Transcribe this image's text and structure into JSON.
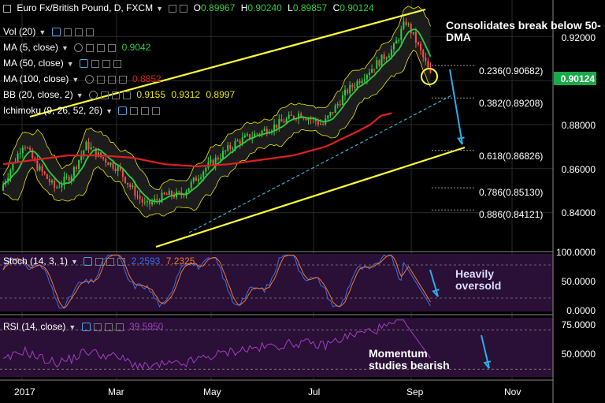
{
  "header": {
    "symbol": "Euro Fx/British Pound, D, FXCM",
    "open_label": "O",
    "open": "0.89967",
    "high_label": "H",
    "high": "0.90240",
    "low_label": "L",
    "low": "0.89857",
    "close_label": "C",
    "close": "0.90124"
  },
  "indicators": [
    {
      "label": "Vol (20)",
      "values": []
    },
    {
      "label": "MA (5, close)",
      "values": [
        "0.9042"
      ]
    },
    {
      "label": "MA (50, close)",
      "values": []
    },
    {
      "label": "MA (100, close)",
      "values": [
        "0.8852"
      ]
    },
    {
      "label": "BB (20, close, 2)",
      "values": [
        "0.9155",
        "0.9312",
        "0.8997"
      ]
    },
    {
      "label": "Ichimoku (9, 26, 52, 26)",
      "values": []
    }
  ],
  "colors": {
    "ma5": "#2ecc40",
    "ma100": "#e02020",
    "bb": "#e6e600",
    "channel": "#ffff33",
    "arrow": "#2ab0e8",
    "stoch_k": "#3a6ee8",
    "stoch_d": "#f07a2a",
    "rsi": "#a040c0",
    "panel_bg": "#2a0f36",
    "price_tag": "#1aa84a",
    "bull": "#2ecc40",
    "bear": "#ff4a4a"
  },
  "price_tag": "0.90124",
  "annotations": {
    "main": "Consolidates break below 50-DMA",
    "stoch": "Heavily oversold",
    "rsi": "Momentum studies bearish"
  },
  "fibonacci": [
    {
      "label": "0.236(0.90682)",
      "value": 0.90682
    },
    {
      "label": "0.382(0.89208)",
      "value": 0.89208
    },
    {
      "label": "0.618(0.86826)",
      "value": 0.86826
    },
    {
      "label": "0.786(0.85130)",
      "value": 0.8513
    },
    {
      "label": "0.886(0.84121)",
      "value": 0.84121
    }
  ],
  "stoch": {
    "label": "Stoch (14, 3, 1)",
    "k": "2.2593",
    "d": "7.2325"
  },
  "rsi": {
    "label": "RSI (14, close)",
    "value": "39.5950"
  },
  "axes": {
    "price_ticks": [
      "0.92000",
      "0.90000",
      "0.88000",
      "0.86000",
      "0.84000"
    ],
    "stoch_ticks": [
      "100.0000",
      "50.0000",
      "0.0000"
    ],
    "rsi_ticks": [
      "75.0000",
      "50.0000"
    ],
    "x_ticks": [
      "2017",
      "Mar",
      "May",
      "Jul",
      "Sep",
      "Nov"
    ]
  },
  "chart_data": {
    "type": "line",
    "x_dates": [
      "2017-01-02",
      "2017-01-23",
      "2017-02-13",
      "2017-03-06",
      "2017-03-27",
      "2017-04-17",
      "2017-05-08",
      "2017-05-29",
      "2017-06-19",
      "2017-07-10",
      "2017-07-31",
      "2017-08-21",
      "2017-08-29",
      "2017-09-05",
      "2017-09-12"
    ],
    "ylim": [
      0.825,
      0.93
    ],
    "series": [
      {
        "name": "MA (100, close)",
        "values": [
          0.862,
          0.864,
          0.866,
          0.866,
          0.865,
          0.862,
          0.861,
          0.862,
          0.864,
          0.866,
          0.87,
          0.877,
          0.88,
          0.884,
          0.8852
        ]
      }
    ],
    "stoch_ylim": [
      0,
      100
    ],
    "rsi_ylim": [
      25,
      85
    ]
  }
}
